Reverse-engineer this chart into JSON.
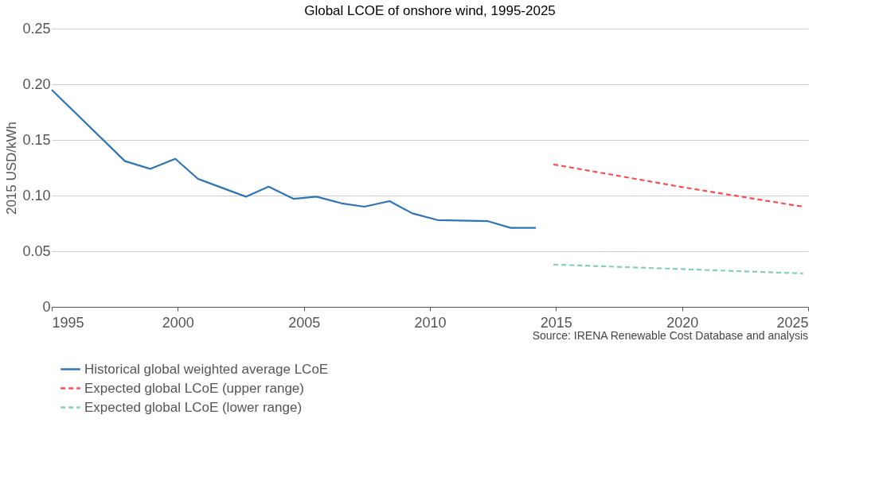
{
  "chart_data": {
    "type": "line",
    "title": "Global LCOE of onshore wind, 1995-2025",
    "ylabel": "2015 USD/kWh",
    "xlim": [
      1995,
      2025
    ],
    "xticks": [
      1995,
      2000,
      2005,
      2010,
      2015,
      2020,
      2025
    ],
    "ylim": [
      0,
      0.25
    ],
    "yticks": [
      {
        "value": 0,
        "label": "0"
      },
      {
        "value": 0.05,
        "label": "0.05"
      },
      {
        "value": 0.1,
        "label": "0.10"
      },
      {
        "value": 0.15,
        "label": "0.15"
      },
      {
        "value": 0.2,
        "label": "0.20"
      },
      {
        "value": 0.25,
        "label": "0.25"
      }
    ],
    "grid": "y",
    "legend": "bottom",
    "marker": "none",
    "series": [
      {
        "name": "Historical global weighted average LCoE",
        "color": "#2e75b6",
        "line_style": "solid",
        "x": [
          1995,
          1997.9,
          1998.9,
          1999.9,
          2000.8,
          2002.7,
          2003.6,
          2004.6,
          2005.5,
          2006.5,
          2007.4,
          2008.4,
          2009.3,
          2010.3,
          2012.3,
          2013.2,
          2014.2
        ],
        "values": [
          0.195,
          0.131,
          0.124,
          0.133,
          0.115,
          0.099,
          0.108,
          0.097,
          0.099,
          0.093,
          0.09,
          0.095,
          0.084,
          0.078,
          0.077,
          0.071,
          0.071
        ]
      },
      {
        "name": "Expected global LCoE (upper range)",
        "color": "#ff4b4b",
        "line_style": "dashed",
        "x": [
          2014.9,
          2019.9,
          2024.8
        ],
        "values": [
          0.128,
          0.108,
          0.09
        ]
      },
      {
        "name": "Expected global LCoE (lower range)",
        "color": "#7fd1b9",
        "line_style": "dashed",
        "x": [
          2014.9,
          2019.9,
          2024.8
        ],
        "values": [
          0.038,
          0.034,
          0.03
        ]
      }
    ],
    "annotations": [
      "Source: IRENA Renewable Cost Database and analysis"
    ]
  }
}
